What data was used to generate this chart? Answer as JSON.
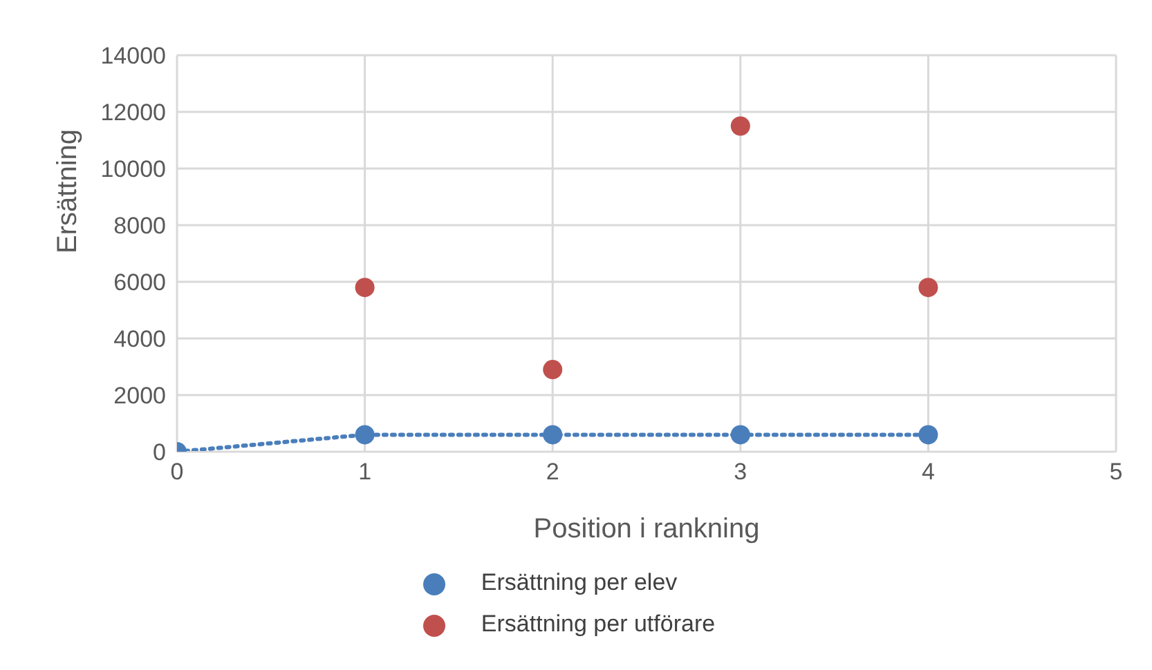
{
  "chart_data": {
    "type": "scatter",
    "xlabel": "Position i rankning",
    "ylabel": "Ersättning",
    "xlim": [
      0,
      5
    ],
    "xticks": [
      0,
      1,
      2,
      3,
      4,
      5
    ],
    "ylim": [
      0,
      14000
    ],
    "yticks": [
      0,
      2000,
      4000,
      6000,
      8000,
      10000,
      12000,
      14000
    ],
    "grid": true,
    "legend": "bottom",
    "marker": "circle",
    "series": [
      {
        "name": "Ersättning per elev",
        "type": "line",
        "line_style": "dotted",
        "color": "#4a7ebb",
        "x": [
          0,
          1,
          2,
          3,
          4
        ],
        "values": [
          0,
          600,
          600,
          600,
          600
        ]
      },
      {
        "name": "Ersättning per utförare",
        "color": "#c0504d",
        "x": [
          1,
          2,
          3,
          4
        ],
        "values": [
          5800,
          2900,
          11500,
          5800
        ]
      }
    ]
  }
}
